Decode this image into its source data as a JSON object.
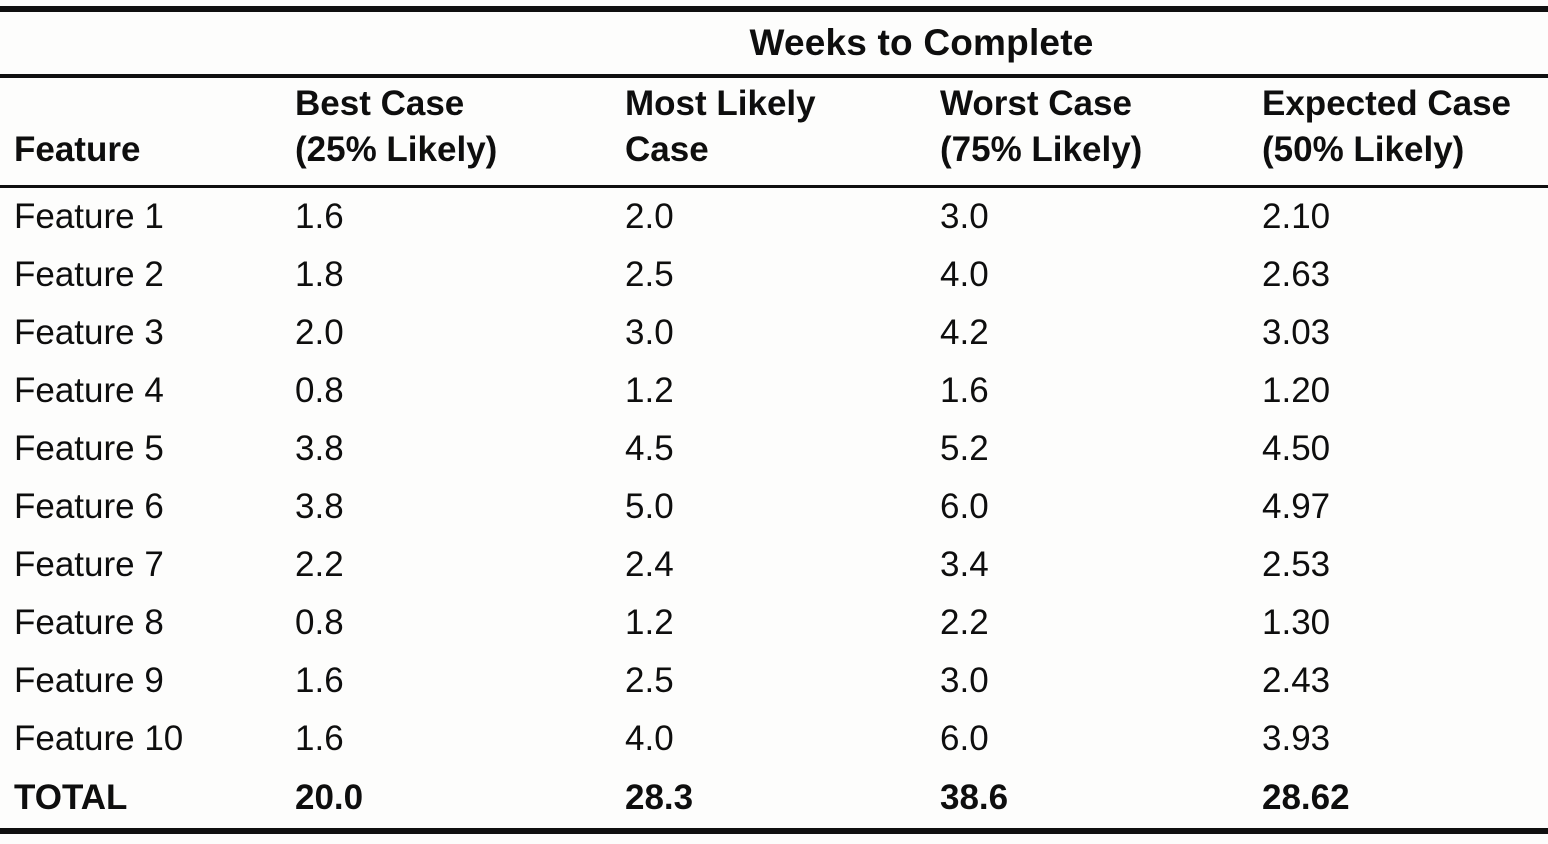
{
  "table": {
    "spanning_header": "Weeks to Complete",
    "headers": {
      "feature": "Feature",
      "best_line1": "Best Case",
      "best_line2": "(25% Likely)",
      "most_line1": "Most Likely",
      "most_line2": "Case",
      "worst_line1": "Worst Case",
      "worst_line2": "(75% Likely)",
      "expected_line1": "Expected Case",
      "expected_line2": "(50% Likely)"
    },
    "rows": [
      {
        "feature": "Feature 1",
        "best": "1.6",
        "most": "2.0",
        "worst": "3.0",
        "expected": "2.10"
      },
      {
        "feature": "Feature 2",
        "best": "1.8",
        "most": "2.5",
        "worst": "4.0",
        "expected": "2.63"
      },
      {
        "feature": "Feature 3",
        "best": "2.0",
        "most": "3.0",
        "worst": "4.2",
        "expected": "3.03"
      },
      {
        "feature": "Feature 4",
        "best": "0.8",
        "most": "1.2",
        "worst": "1.6",
        "expected": "1.20"
      },
      {
        "feature": "Feature 5",
        "best": "3.8",
        "most": "4.5",
        "worst": "5.2",
        "expected": "4.50"
      },
      {
        "feature": "Feature 6",
        "best": "3.8",
        "most": "5.0",
        "worst": "6.0",
        "expected": "4.97"
      },
      {
        "feature": "Feature 7",
        "best": "2.2",
        "most": "2.4",
        "worst": "3.4",
        "expected": "2.53"
      },
      {
        "feature": "Feature 8",
        "best": "0.8",
        "most": "1.2",
        "worst": "2.2",
        "expected": "1.30"
      },
      {
        "feature": "Feature 9",
        "best": "1.6",
        "most": "2.5",
        "worst": "3.0",
        "expected": "2.43"
      },
      {
        "feature": "Feature 10",
        "best": "1.6",
        "most": "4.0",
        "worst": "6.0",
        "expected": "3.93"
      }
    ],
    "total": {
      "feature": "TOTAL",
      "best": "20.0",
      "most": "28.3",
      "worst": "38.6",
      "expected": "28.62"
    }
  },
  "chart_data": {
    "type": "table",
    "title": "Weeks to Complete",
    "columns": [
      "Feature",
      "Best Case (25% Likely)",
      "Most Likely Case",
      "Worst Case (75% Likely)",
      "Expected Case (50% Likely)"
    ],
    "rows": [
      [
        "Feature 1",
        1.6,
        2.0,
        3.0,
        2.1
      ],
      [
        "Feature 2",
        1.8,
        2.5,
        4.0,
        2.63
      ],
      [
        "Feature 3",
        2.0,
        3.0,
        4.2,
        3.03
      ],
      [
        "Feature 4",
        0.8,
        1.2,
        1.6,
        1.2
      ],
      [
        "Feature 5",
        3.8,
        4.5,
        5.2,
        4.5
      ],
      [
        "Feature 6",
        3.8,
        5.0,
        6.0,
        4.97
      ],
      [
        "Feature 7",
        2.2,
        2.4,
        3.4,
        2.53
      ],
      [
        "Feature 8",
        0.8,
        1.2,
        2.2,
        1.3
      ],
      [
        "Feature 9",
        1.6,
        2.5,
        3.0,
        2.43
      ],
      [
        "Feature 10",
        1.6,
        4.0,
        6.0,
        3.93
      ]
    ],
    "total_row": [
      "TOTAL",
      20.0,
      28.3,
      38.6,
      28.62
    ]
  },
  "colors": {
    "ink": "#0e0e0e",
    "paper": "#fdfdfc",
    "rule": "#101010"
  }
}
